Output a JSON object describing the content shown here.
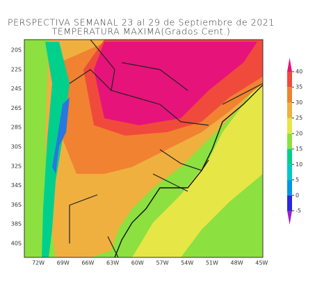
{
  "header": {
    "title": "PERSPECTIVA SEMANAL  23 al 29 de Septiembre de 2021",
    "subtitle": "TEMPERATURA MAXIMA(Grados Cent.)"
  },
  "map": {
    "lat_labels": [
      "20S",
      "22S",
      "24S",
      "26S",
      "28S",
      "30S",
      "32S",
      "34S",
      "36S",
      "38S",
      "40S"
    ],
    "lon_labels": [
      "72W",
      "69W",
      "66W",
      "63W",
      "60W",
      "57W",
      "54W",
      "51W",
      "48W",
      "45W"
    ]
  },
  "colorbar": {
    "ticks": [
      -5,
      0,
      5,
      10,
      15,
      20,
      25,
      30,
      35,
      40
    ],
    "colors": [
      "#a020c8",
      "#2828e0",
      "#0096e6",
      "#00c8c8",
      "#00d08c",
      "#8ce040",
      "#e6e646",
      "#f0b040",
      "#f08232",
      "#f04a3c",
      "#e6137a"
    ]
  }
}
